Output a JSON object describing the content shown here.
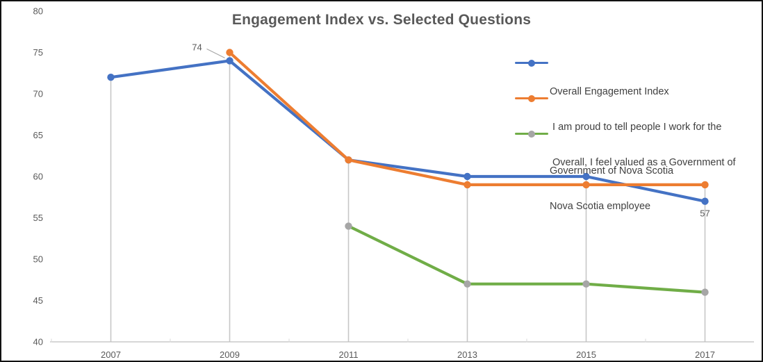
{
  "title": "Engagement Index vs. Selected Questions",
  "chart_data": {
    "type": "line",
    "title": "Engagement Index vs. Selected Questions",
    "categories": [
      "2007",
      "2009",
      "2011",
      "2013",
      "2015",
      "2017"
    ],
    "series": [
      {
        "name": "Overall Engagement Index",
        "color": "#4472C4",
        "marker_color": "#4472C4",
        "values": [
          72,
          74,
          62,
          60,
          60,
          57
        ]
      },
      {
        "name": "I am proud to tell people I work for the Government of Nova Scotia",
        "color": "#ED7D31",
        "marker_color": "#ED7D31",
        "values": [
          null,
          75,
          62,
          59,
          59,
          59
        ]
      },
      {
        "name": "Overall, I feel valued as a Government of Nova Scotia employee",
        "color": "#70AD47",
        "marker_color": "#A6A6A6",
        "values": [
          null,
          null,
          54,
          47,
          47,
          46
        ]
      }
    ],
    "ylim": [
      40,
      80
    ],
    "yticks": [
      40,
      45,
      50,
      55,
      60,
      65,
      70,
      75,
      80
    ],
    "point_labels": [
      {
        "series_index": 0,
        "category_index": 1,
        "text": "74",
        "placement": "above-left",
        "leader_line": true
      },
      {
        "series_index": 0,
        "category_index": 5,
        "text": "57",
        "placement": "below",
        "leader_line": false
      }
    ],
    "legend_position": "right-top",
    "grid": {
      "horizontal": false,
      "vertical_drop_lines": true
    }
  },
  "legend": {
    "items": [
      {
        "lines": [
          "Overall Engagement Index"
        ],
        "line_color": "#4472C4",
        "marker_color": "#4472C4"
      },
      {
        "lines": [
          " I am proud to tell people I work for the",
          "Government of Nova Scotia"
        ],
        "line_color": "#ED7D31",
        "marker_color": "#ED7D31"
      },
      {
        "lines": [
          " Overall, I feel valued as a Government of",
          "Nova Scotia employee"
        ],
        "line_color": "#70AD47",
        "marker_color": "#A6A6A6"
      }
    ]
  },
  "colors": {
    "axis_line": "#BFBFBF",
    "drop_line": "#C7C7C7",
    "tick": "#D9D9D9",
    "leader_line": "#A6A6A6",
    "title_text": "#595959",
    "axis_text": "#595959",
    "data_label_text": "#595959",
    "legend_text": "#404040",
    "background": "#FFFFFF",
    "border": "#111111"
  }
}
